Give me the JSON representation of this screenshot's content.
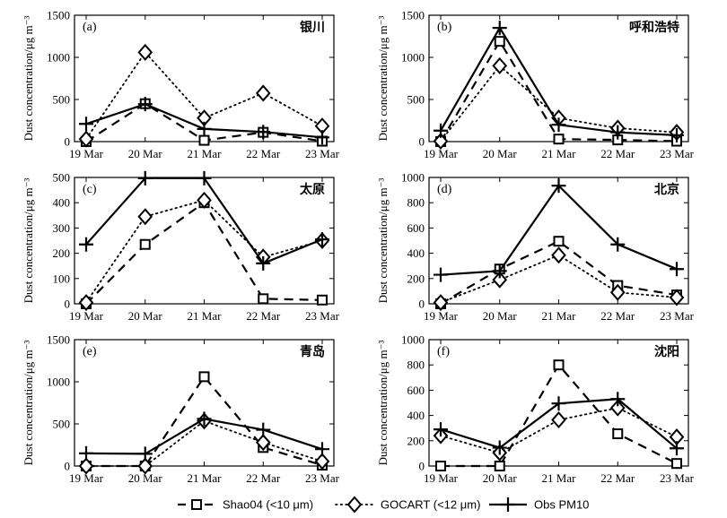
{
  "chart_data": [
    {
      "type": "line",
      "panel_label": "(a)",
      "city": "银川",
      "categories": [
        "19 Mar",
        "20 Mar",
        "21 Mar",
        "22 Mar",
        "23 Mar"
      ],
      "ylim": [
        0,
        1500
      ],
      "yticks": [
        0,
        500,
        1000,
        1500
      ],
      "ylabel": "Dust concentration/μg m⁻³",
      "series": [
        {
          "name": "Shao04 (<10 μm)",
          "values": [
            0,
            450,
            15,
            110,
            5
          ]
        },
        {
          "name": "GOCART (<12 μm)",
          "values": [
            30,
            1060,
            280,
            575,
            185
          ]
        },
        {
          "name": "Obs PM10",
          "values": [
            210,
            445,
            150,
            115,
            50
          ]
        }
      ]
    },
    {
      "type": "line",
      "panel_label": "(b)",
      "city": "呼和浩特",
      "categories": [
        "19 Mar",
        "20 Mar",
        "21 Mar",
        "22 Mar",
        "23 Mar"
      ],
      "ylim": [
        0,
        1500
      ],
      "yticks": [
        0,
        500,
        1000,
        1500
      ],
      "ylabel": "Dust concentration/μg m⁻³",
      "series": [
        {
          "name": "Shao04 (<10 μm)",
          "values": [
            0,
            1190,
            30,
            20,
            5
          ]
        },
        {
          "name": "GOCART (<12 μm)",
          "values": [
            5,
            900,
            280,
            160,
            110
          ]
        },
        {
          "name": "Obs PM10",
          "values": [
            130,
            1350,
            200,
            110,
            75
          ]
        }
      ]
    },
    {
      "type": "line",
      "panel_label": "(c)",
      "city": "太原",
      "categories": [
        "19 Mar",
        "20 Mar",
        "21 Mar",
        "22 Mar",
        "23 Mar"
      ],
      "ylim": [
        0,
        500
      ],
      "yticks": [
        0,
        100,
        200,
        300,
        400,
        500
      ],
      "ylabel": "Dust concentration/μg m⁻³",
      "series": [
        {
          "name": "Shao04 (<10 μm)",
          "values": [
            0,
            235,
            400,
            20,
            15
          ]
        },
        {
          "name": "GOCART (<12 μm)",
          "values": [
            5,
            345,
            410,
            185,
            250
          ]
        },
        {
          "name": "Obs PM10",
          "values": [
            235,
            497,
            497,
            160,
            255
          ]
        }
      ]
    },
    {
      "type": "line",
      "panel_label": "(d)",
      "city": "北京",
      "categories": [
        "19 Mar",
        "20 Mar",
        "21 Mar",
        "22 Mar",
        "23 Mar"
      ],
      "ylim": [
        0,
        1000
      ],
      "yticks": [
        0,
        200,
        400,
        600,
        800,
        1000
      ],
      "ylabel": "Dust concentration/μg m⁻³",
      "series": [
        {
          "name": "Shao04 (<10 μm)",
          "values": [
            0,
            275,
            495,
            145,
            70
          ]
        },
        {
          "name": "GOCART (<12 μm)",
          "values": [
            10,
            190,
            385,
            90,
            50
          ]
        },
        {
          "name": "Obs PM10",
          "values": [
            230,
            260,
            935,
            470,
            275
          ]
        }
      ]
    },
    {
      "type": "line",
      "panel_label": "(e)",
      "city": "青岛",
      "categories": [
        "19 Mar",
        "20 Mar",
        "21 Mar",
        "22 Mar",
        "23 Mar"
      ],
      "ylim": [
        0,
        1500
      ],
      "yticks": [
        0,
        500,
        1000,
        1500
      ],
      "ylabel": "Dust concentration/μg m⁻³",
      "series": [
        {
          "name": "Shao04 (<10 μm)",
          "values": [
            0,
            0,
            1060,
            220,
            10
          ]
        },
        {
          "name": "GOCART (<12 μm)",
          "values": [
            0,
            0,
            535,
            280,
            55
          ]
        },
        {
          "name": "Obs PM10",
          "values": [
            150,
            145,
            560,
            430,
            200
          ]
        }
      ]
    },
    {
      "type": "line",
      "panel_label": "(f)",
      "city": "沈阳",
      "categories": [
        "19 Mar",
        "20 Mar",
        "21 Mar",
        "22 Mar",
        "23 Mar"
      ],
      "ylim": [
        0,
        1000
      ],
      "yticks": [
        0,
        200,
        400,
        600,
        800,
        1000
      ],
      "ylabel": "Dust concentration/μg m⁻³",
      "series": [
        {
          "name": "Shao04 (<10 μm)",
          "values": [
            0,
            0,
            800,
            255,
            20
          ]
        },
        {
          "name": "GOCART (<12 μm)",
          "values": [
            240,
            105,
            365,
            460,
            230
          ]
        },
        {
          "name": "Obs PM10",
          "values": [
            290,
            145,
            495,
            530,
            140
          ]
        }
      ]
    }
  ],
  "legend": [
    {
      "label": "Shao04 (<10 μm)",
      "style": "dashed",
      "marker": "square"
    },
    {
      "label": "GOCART (<12 μm)",
      "style": "dotted",
      "marker": "diamond"
    },
    {
      "label": "Obs PM10",
      "style": "solid",
      "marker": "plus"
    }
  ],
  "colors": {
    "line": "#000000",
    "background": "#ffffff"
  }
}
